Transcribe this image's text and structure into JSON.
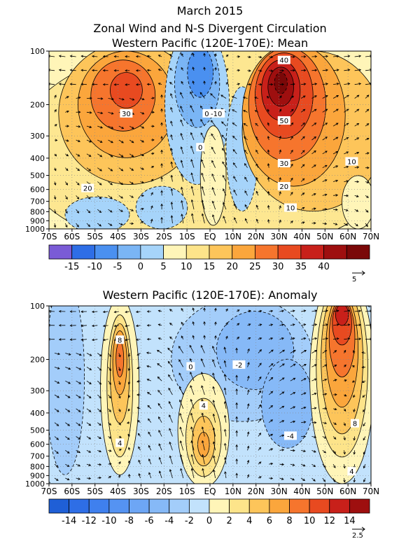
{
  "header": {
    "line1": "March 2015",
    "line2": "Zonal Wind and N-S Divergent Circulation",
    "line3": "Western Pacific (120E-170E): Mean"
  },
  "chart_data": [
    {
      "type": "heatmap",
      "title": "Western Pacific (120E-170E): Mean",
      "x_ticks": [
        "70S",
        "60S",
        "50S",
        "40S",
        "30S",
        "20S",
        "10S",
        "EQ",
        "10N",
        "20N",
        "30N",
        "40N",
        "50N",
        "60N",
        "70N"
      ],
      "y_ticks": [
        100,
        200,
        300,
        400,
        500,
        600,
        700,
        800,
        900,
        1000
      ],
      "y_scale": "log-pressure",
      "colorbar": {
        "ticks": [
          "-15",
          "-10",
          "-5",
          "0",
          "5",
          "10",
          "15",
          "20",
          "25",
          "30",
          "35",
          "40"
        ],
        "colors": [
          "#7a5bd6",
          "#2e6ee6",
          "#4a90f0",
          "#7ab5f5",
          "#a6d4fa",
          "#fff5b8",
          "#fde48a",
          "#fdc55a",
          "#fba63c",
          "#f6752d",
          "#e84a20",
          "#c8201a",
          "#9e0f0f",
          "#7a0808"
        ]
      },
      "contour_labels": [
        "40",
        "30",
        "50",
        "30",
        "20",
        "10",
        "10",
        "20",
        "0",
        "-10",
        "0"
      ],
      "vector_scale": "5"
    },
    {
      "type": "heatmap",
      "title": "Western Pacific (120E-170E): Anomaly",
      "x_ticks": [
        "70S",
        "60S",
        "50S",
        "40S",
        "30S",
        "20S",
        "10S",
        "EQ",
        "10N",
        "20N",
        "30N",
        "40N",
        "50N",
        "60N",
        "70N"
      ],
      "y_ticks": [
        100,
        200,
        300,
        400,
        500,
        600,
        700,
        800,
        900,
        1000
      ],
      "y_scale": "log-pressure",
      "colorbar": {
        "ticks": [
          "-14",
          "-12",
          "-10",
          "-8",
          "-6",
          "-4",
          "-2",
          "0",
          "2",
          "4",
          "6",
          "8",
          "10",
          "12",
          "14"
        ],
        "colors": [
          "#1f5fd6",
          "#2e6ee6",
          "#3f80ee",
          "#5593f2",
          "#6da6f5",
          "#86b9f7",
          "#a3cdfa",
          "#c2e2fc",
          "#fff5b8",
          "#fde48a",
          "#fdc55a",
          "#fba63c",
          "#f6752d",
          "#e84a20",
          "#c8201a",
          "#9e0f0f"
        ]
      },
      "contour_labels": [
        "8",
        "4",
        "-2",
        "0",
        "4",
        "8",
        "-4",
        "4"
      ],
      "vector_scale": "2.5"
    }
  ]
}
